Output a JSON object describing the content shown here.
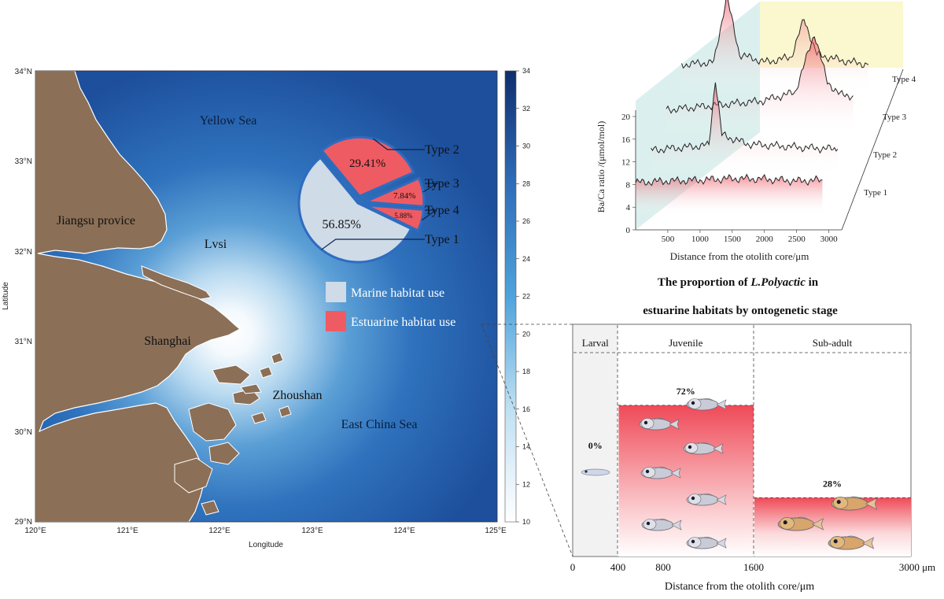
{
  "map": {
    "lat_ticks": [
      "34°N",
      "33°N",
      "32°N",
      "31°N",
      "30°N",
      "29°N"
    ],
    "lon_ticks": [
      "120°E",
      "121°E",
      "122°E",
      "123°E",
      "124°E",
      "125°E"
    ],
    "xlabel": "Longitude",
    "ylabel": "Latitude",
    "places": {
      "yellow_sea": "Yellow Sea",
      "jiangsu": "Jiangsu provice",
      "lvsi": "Lvsi",
      "shanghai": "Shanghai",
      "zhoushan": "Zhoushan",
      "east_china_sea": "East China Sea"
    },
    "colorbar_ticks": [
      "34",
      "32",
      "30",
      "28",
      "26",
      "24",
      "22",
      "20",
      "18",
      "16",
      "14",
      "12",
      "10"
    ],
    "colors": {
      "land": "#8b6f57",
      "sea_deep": "#1d4f9c",
      "sea_light": "#e9f3fb"
    }
  },
  "legend": {
    "marine": "Marine habitat use",
    "estuarine": "Estuarine habitat use",
    "colors": {
      "marine": "#cfdbe7",
      "estuarine": "#ef5b62"
    }
  },
  "chart_data": [
    {
      "type": "pie",
      "slices": [
        {
          "label": "Type 1",
          "value": 56.85,
          "text": "56.85%",
          "habitat": "Marine habitat use"
        },
        {
          "label": "Type 2",
          "value": 29.41,
          "text": "29.41%",
          "habitat": "Estuarine habitat use"
        },
        {
          "label": "Type 3",
          "value": 7.84,
          "text": "7.84%",
          "habitat": "Estuarine habitat use"
        },
        {
          "label": "Type 4",
          "value": 5.88,
          "text": "5.88%",
          "habitat": "Estuarine habitat use"
        }
      ]
    },
    {
      "type": "line",
      "title": "",
      "xlabel": "Distance from the otolith core/μm",
      "ylabel": "Ba/Ca ratio /(μmol/mol)",
      "xticks": [
        500,
        1000,
        1500,
        2000,
        2500,
        3000
      ],
      "yticks": [
        0,
        4,
        8,
        12,
        16,
        20
      ],
      "ylim": [
        0,
        20
      ],
      "series": [
        {
          "name": "Type 1",
          "x": [
            0,
            500,
            1000,
            1500,
            2000,
            2500,
            2900
          ],
          "values": [
            6.5,
            6.8,
            7.0,
            7.3,
            7.2,
            6.8,
            7.0
          ]
        },
        {
          "name": "Type 2",
          "x": [
            0,
            500,
            900,
            1000,
            1100,
            1500,
            2000,
            2500,
            2900
          ],
          "values": [
            5.0,
            5.5,
            6.0,
            19.0,
            8.0,
            6.2,
            5.8,
            5.4,
            5.2
          ]
        },
        {
          "name": "Type 3",
          "x": [
            0,
            500,
            1000,
            1500,
            2000,
            2300,
            2500,
            2700,
            2900
          ],
          "values": [
            5.0,
            5.6,
            6.2,
            6.8,
            8.5,
            20.0,
            10.5,
            8.0,
            7.8
          ]
        },
        {
          "name": "Type 4",
          "x": [
            0,
            500,
            700,
            900,
            1300,
            1700,
            1900,
            2100,
            2500,
            2900
          ],
          "values": [
            6.0,
            6.5,
            19.5,
            8.0,
            6.5,
            7.5,
            15.0,
            8.0,
            6.8,
            6.0
          ]
        }
      ],
      "colors": {
        "line": "#222222",
        "peak_fill": "#e8394a",
        "back_wall": "#fbf7cf",
        "side_wall": "#d7eeec"
      }
    },
    {
      "type": "bar",
      "title_part1": "The proportion of ",
      "title_italic": "L.Polyactic",
      "title_part2": " in",
      "title_line2": "estuarine habitats by ontogenetic stage",
      "xlabel": "Distance from the otolith core/μm",
      "xticks": [
        "0",
        "400",
        "800",
        "1600",
        "3000 μm"
      ],
      "categories": [
        "Larval",
        "Juvenile",
        "Sub-adult"
      ],
      "ranges_um": [
        [
          0,
          400
        ],
        [
          400,
          1600
        ],
        [
          1600,
          3000
        ]
      ],
      "values": [
        0,
        72,
        28
      ],
      "value_labels": [
        "0%",
        "72%",
        "28%"
      ],
      "ylim": [
        0,
        100
      ]
    }
  ]
}
